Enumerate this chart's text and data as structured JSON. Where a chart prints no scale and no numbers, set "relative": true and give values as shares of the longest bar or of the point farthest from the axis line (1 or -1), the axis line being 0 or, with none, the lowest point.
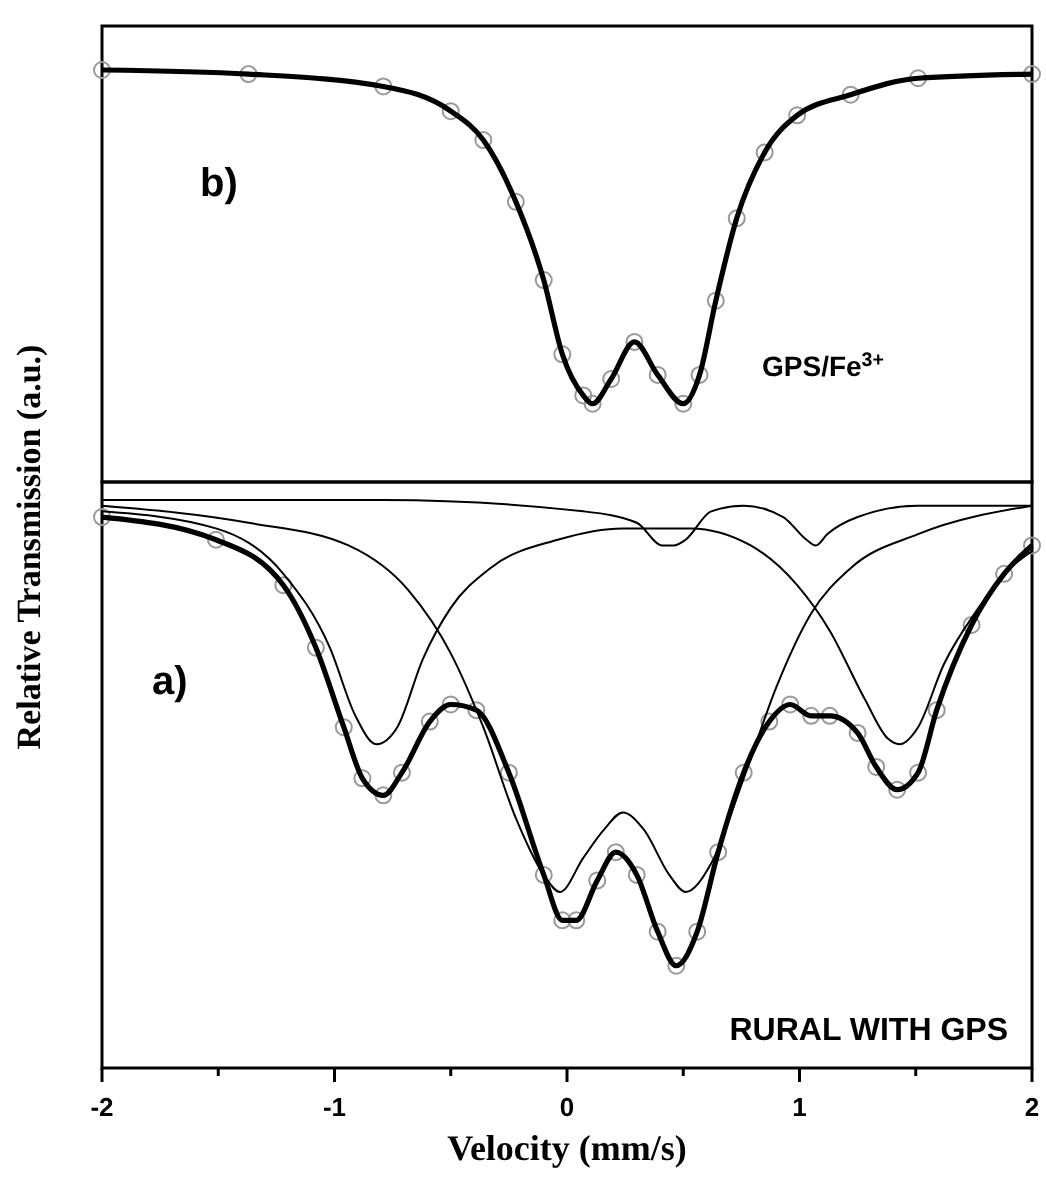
{
  "chart_data": [
    {
      "type": "line",
      "relative": true,
      "tick_labels": false,
      "xlim": [
        -2,
        2
      ],
      "annotations": [
        "b)",
        "GPS/Fe$^{3+}$"
      ],
      "series": [
        {
          "type": "scatter",
          "marker": "circle",
          "color": "#999999",
          "x": [
            -2.0,
            -1.37,
            -0.79,
            -0.5,
            -0.36,
            -0.22,
            -0.1,
            -0.02,
            0.07,
            0.11,
            0.19,
            0.29,
            0.39,
            0.5,
            0.57,
            0.64,
            0.73,
            0.85,
            0.99,
            1.22,
            1.51,
            2.0
          ],
          "values": [
            1.0,
            0.99,
            0.96,
            0.9,
            0.83,
            0.68,
            0.49,
            0.31,
            0.21,
            0.19,
            0.25,
            0.34,
            0.26,
            0.19,
            0.26,
            0.44,
            0.64,
            0.8,
            0.89,
            0.94,
            0.98,
            0.99
          ]
        },
        {
          "color": "#000000",
          "x": [
            -2.0,
            -1.37,
            -0.79,
            -0.5,
            -0.36,
            -0.22,
            -0.1,
            -0.02,
            0.07,
            0.11,
            0.19,
            0.29,
            0.39,
            0.5,
            0.57,
            0.64,
            0.73,
            0.85,
            0.99,
            1.22,
            1.51,
            2.0
          ],
          "values": [
            1.0,
            0.99,
            0.96,
            0.9,
            0.83,
            0.68,
            0.49,
            0.31,
            0.21,
            0.19,
            0.25,
            0.34,
            0.26,
            0.19,
            0.26,
            0.44,
            0.64,
            0.8,
            0.89,
            0.94,
            0.98,
            0.99
          ]
        }
      ]
    },
    {
      "type": "line",
      "relative": true,
      "tick_labels": "x",
      "xlim": [
        -2,
        2
      ],
      "xticks": [
        -2,
        {
          "value": -1.5,
          "label": null
        },
        -1,
        {
          "value": -0.5,
          "label": null
        },
        0,
        {
          "value": 0.5,
          "label": null
        },
        1,
        {
          "value": 1.5,
          "label": null
        },
        2
      ],
      "xlabel": "Velocity (mm/s)",
      "ylabel": "Relative Transmission (a.u.)",
      "annotations": [
        "a)",
        "RURAL WITH GPS"
      ],
      "series": [
        {
          "type": "scatter",
          "marker": "circle",
          "color": "#999999",
          "x": [
            -2.0,
            -1.51,
            -1.22,
            -1.08,
            -0.96,
            -0.88,
            -0.79,
            -0.71,
            -0.59,
            -0.5,
            -0.39,
            -0.25,
            -0.1,
            -0.02,
            0.04,
            0.13,
            0.21,
            0.3,
            0.39,
            0.47,
            0.56,
            0.65,
            0.76,
            0.87,
            0.96,
            1.05,
            1.13,
            1.25,
            1.33,
            1.42,
            1.51,
            1.59,
            1.74,
            1.88,
            2.0
          ],
          "values": [
            0.97,
            0.93,
            0.85,
            0.74,
            0.6,
            0.51,
            0.48,
            0.52,
            0.61,
            0.64,
            0.63,
            0.52,
            0.34,
            0.26,
            0.26,
            0.33,
            0.38,
            0.34,
            0.24,
            0.18,
            0.24,
            0.38,
            0.52,
            0.61,
            0.64,
            0.62,
            0.62,
            0.59,
            0.53,
            0.49,
            0.52,
            0.63,
            0.78,
            0.87,
            0.92
          ]
        },
        {
          "color": "#000000",
          "x": [
            -2.0,
            -1.51,
            -1.22,
            -1.08,
            -0.96,
            -0.88,
            -0.79,
            -0.71,
            -0.59,
            -0.5,
            -0.39,
            -0.25,
            -0.1,
            -0.02,
            0.04,
            0.13,
            0.21,
            0.3,
            0.39,
            0.47,
            0.56,
            0.65,
            0.76,
            0.87,
            0.96,
            1.05,
            1.13,
            1.25,
            1.33,
            1.42,
            1.51,
            1.59,
            1.74,
            1.88,
            2.0
          ],
          "values": [
            0.97,
            0.93,
            0.85,
            0.74,
            0.6,
            0.51,
            0.48,
            0.52,
            0.61,
            0.64,
            0.63,
            0.52,
            0.34,
            0.26,
            0.26,
            0.33,
            0.38,
            0.34,
            0.24,
            0.18,
            0.24,
            0.38,
            0.52,
            0.61,
            0.64,
            0.62,
            0.62,
            0.59,
            0.53,
            0.49,
            0.52,
            0.63,
            0.78,
            0.87,
            0.92
          ]
        },
        {
          "color": "#000000",
          "x": [
            -2.0,
            -1.51,
            -1.22,
            -1.02,
            -0.91,
            -0.82,
            -0.73,
            -0.62,
            -0.5,
            -0.33,
            -0.04,
            0.24,
            0.53,
            0.79,
            0.99,
            1.13,
            1.28,
            1.38,
            1.43,
            1.51,
            1.62,
            1.77,
            1.88,
            2.0
          ],
          "values": [
            0.98,
            0.95,
            0.87,
            0.74,
            0.62,
            0.57,
            0.6,
            0.72,
            0.81,
            0.88,
            0.93,
            0.95,
            0.95,
            0.92,
            0.85,
            0.77,
            0.65,
            0.58,
            0.57,
            0.6,
            0.71,
            0.81,
            0.87,
            0.91
          ]
        },
        {
          "color": "#000000",
          "x": [
            -2.0,
            -1.37,
            -0.94,
            -0.68,
            -0.5,
            -0.36,
            -0.22,
            -0.1,
            -0.03,
            0.07,
            0.16,
            0.24,
            0.33,
            0.44,
            0.51,
            0.62,
            0.76,
            0.9,
            1.05,
            1.22,
            1.51,
            2.0
          ],
          "values": [
            0.99,
            0.96,
            0.92,
            0.84,
            0.73,
            0.6,
            0.44,
            0.34,
            0.31,
            0.37,
            0.42,
            0.45,
            0.42,
            0.34,
            0.31,
            0.36,
            0.51,
            0.67,
            0.8,
            0.88,
            0.94,
            0.99
          ]
        },
        {
          "color": "#000000",
          "x": [
            -2.0,
            -0.79,
            0.07,
            0.3,
            0.41,
            0.46,
            0.51,
            0.62,
            0.76,
            0.93,
            1.03,
            1.07,
            1.12,
            1.25,
            1.51,
            2.0
          ],
          "values": [
            1.0,
            1.0,
            0.98,
            0.96,
            0.92,
            0.92,
            0.93,
            0.98,
            0.99,
            0.97,
            0.93,
            0.92,
            0.94,
            0.97,
            0.99,
            0.99
          ]
        }
      ]
    }
  ]
}
